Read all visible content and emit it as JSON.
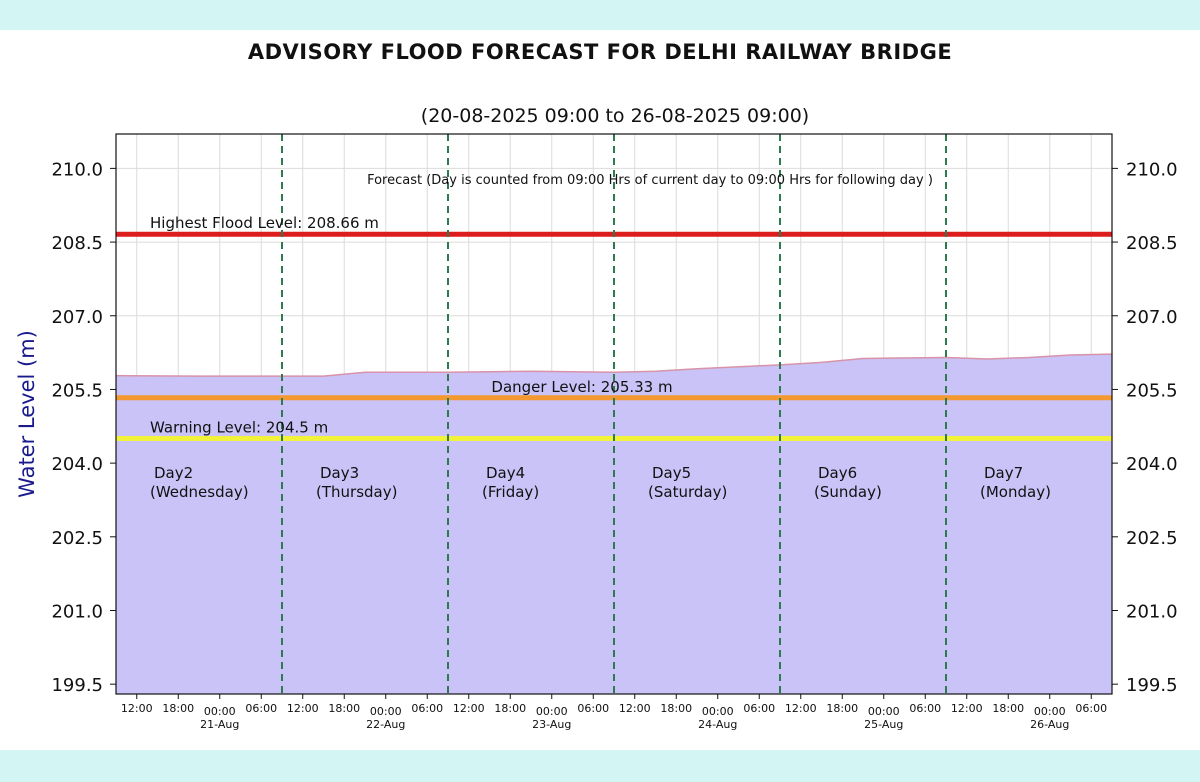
{
  "chart_data": {
    "type": "area",
    "title": "ADVISORY FLOOD FORECAST FOR DELHI RAILWAY BRIDGE",
    "subtitle": "(20-08-2025 09:00 to 26-08-2025 09:00)",
    "ylabel": "Water Level (m)",
    "xlabel": "",
    "ylim": [
      199.3,
      210.7
    ],
    "xlim_hours": [
      0,
      144
    ],
    "yticks": [
      "199.5",
      "201.0",
      "202.5",
      "204.0",
      "205.5",
      "207.0",
      "208.5",
      "210.0"
    ],
    "ytick_values": [
      199.5,
      201.0,
      202.5,
      204.0,
      205.5,
      207.0,
      208.5,
      210.0
    ],
    "time_ticks": [
      "12:00",
      "18:00",
      "00:00",
      "06:00",
      "12:00",
      "18:00",
      "00:00",
      "06:00",
      "12:00",
      "18:00",
      "00:00",
      "06:00",
      "12:00",
      "18:00",
      "00:00",
      "06:00",
      "12:00",
      "18:00",
      "00:00",
      "06:00",
      "12:00",
      "18:00",
      "00:00",
      "06:00"
    ],
    "date_ticks": [
      "21-Aug",
      "22-Aug",
      "23-Aug",
      "24-Aug",
      "25-Aug",
      "26-Aug"
    ],
    "annotation": "Forecast (Day is counted from 09:00 Hrs of current day to 09:00 Hrs for following day )",
    "reference_lines": [
      {
        "label": "Highest Flood Level: 208.66 m",
        "value": 208.66,
        "color": "#dd1c1c"
      },
      {
        "label": "Danger Level: 205.33 m",
        "value": 205.33,
        "color": "#f3992f"
      },
      {
        "label": "Warning Level: 204.5 m",
        "value": 204.5,
        "color": "#f2f23a"
      }
    ],
    "day_labels": [
      {
        "day": "Day2",
        "weekday": "(Wednesday)"
      },
      {
        "day": "Day3",
        "weekday": "(Thursday)"
      },
      {
        "day": "Day4",
        "weekday": "(Friday)"
      },
      {
        "day": "Day5",
        "weekday": "(Saturday)"
      },
      {
        "day": "Day6",
        "weekday": "(Sunday)"
      },
      {
        "day": "Day7",
        "weekday": "(Monday)"
      }
    ],
    "day_dividers_hours": [
      24,
      48,
      72,
      96,
      120
    ],
    "series": [
      {
        "x_hours": [
          0,
          12,
          24,
          30,
          36,
          48,
          60,
          72,
          78,
          84,
          96,
          102,
          108,
          120,
          126,
          132,
          138,
          144
        ],
        "values": [
          205.78,
          205.77,
          205.77,
          205.77,
          205.85,
          205.85,
          205.87,
          205.85,
          205.87,
          205.92,
          206.0,
          206.05,
          206.13,
          206.15,
          206.12,
          206.15,
          206.2,
          206.22
        ]
      }
    ],
    "colors": {
      "fill": "#c9c3f7",
      "line": "#d893a9",
      "divider": "#2e7a4f",
      "ylabel": "#1a1a8c"
    }
  }
}
